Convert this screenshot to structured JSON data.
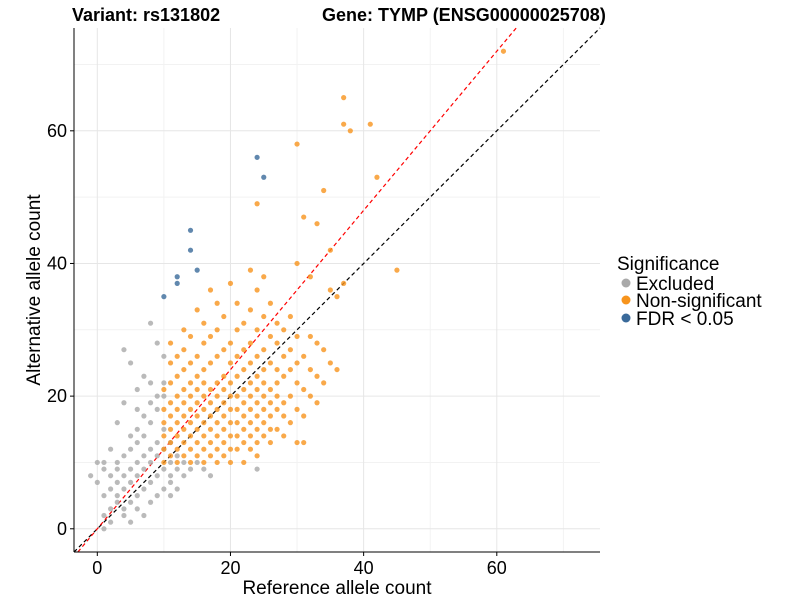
{
  "title_left": "Variant: rs131802",
  "title_right": "Gene: TYMP (ENSG00000025708)",
  "chart_data": {
    "type": "scatter",
    "xlabel": "Reference allele count",
    "ylabel": "Alternative allele count",
    "xlim": [
      -3.5,
      75.5
    ],
    "ylim": [
      -3.5,
      75.5
    ],
    "xticks": [
      0,
      20,
      40,
      60
    ],
    "yticks": [
      0,
      20,
      40,
      60
    ],
    "grid": true,
    "reference_lines": [
      {
        "name": "diagonal y = x",
        "slope": 1,
        "intercept": 0,
        "color": "#000000",
        "dash": "dashed"
      },
      {
        "name": "fitted ratio",
        "slope": 1.2,
        "intercept": 0,
        "color": "#ff0000",
        "dash": "dashed"
      }
    ],
    "legend": {
      "title": "Significance",
      "position": "right",
      "entries": [
        {
          "label": "Excluded",
          "color": "#a9a9a9"
        },
        {
          "label": "Non-significant",
          "color": "#f7941d"
        },
        {
          "label": "FDR < 0.05",
          "color": "#3a6a9a"
        }
      ]
    },
    "series": [
      {
        "name": "Excluded",
        "color": "#a9a9a9",
        "points": [
          [
            -1,
            8
          ],
          [
            1,
            0
          ],
          [
            1,
            2
          ],
          [
            2,
            1
          ],
          [
            2,
            3
          ],
          [
            1,
            5
          ],
          [
            0,
            7
          ],
          [
            1,
            9
          ],
          [
            0,
            10
          ],
          [
            1,
            10
          ],
          [
            2,
            6
          ],
          [
            2,
            8
          ],
          [
            3,
            4
          ],
          [
            3,
            5
          ],
          [
            3,
            7
          ],
          [
            3,
            9
          ],
          [
            3,
            10
          ],
          [
            4,
            2
          ],
          [
            4,
            3
          ],
          [
            4,
            6
          ],
          [
            4,
            8
          ],
          [
            4,
            11
          ],
          [
            5,
            1
          ],
          [
            5,
            4
          ],
          [
            5,
            7
          ],
          [
            5,
            9
          ],
          [
            5,
            12
          ],
          [
            5,
            14
          ],
          [
            6,
            3
          ],
          [
            6,
            5
          ],
          [
            6,
            8
          ],
          [
            6,
            10
          ],
          [
            6,
            13
          ],
          [
            6,
            15
          ],
          [
            7,
            2
          ],
          [
            7,
            6
          ],
          [
            7,
            9
          ],
          [
            7,
            11
          ],
          [
            7,
            14
          ],
          [
            7,
            17
          ],
          [
            8,
            4
          ],
          [
            8,
            7
          ],
          [
            8,
            10
          ],
          [
            8,
            12
          ],
          [
            8,
            16
          ],
          [
            8,
            19
          ],
          [
            9,
            5
          ],
          [
            9,
            8
          ],
          [
            9,
            11
          ],
          [
            9,
            13
          ],
          [
            9,
            18
          ],
          [
            9,
            20
          ],
          [
            10,
            6
          ],
          [
            10,
            9
          ],
          [
            10,
            12
          ],
          [
            10,
            15
          ],
          [
            10,
            20
          ],
          [
            10,
            22
          ],
          [
            11,
            7
          ],
          [
            11,
            10
          ],
          [
            11,
            13
          ],
          [
            11,
            8
          ],
          [
            12,
            9
          ],
          [
            12,
            11
          ],
          [
            13,
            8
          ],
          [
            13,
            10
          ],
          [
            14,
            9
          ],
          [
            15,
            10
          ],
          [
            16,
            9
          ],
          [
            17,
            8
          ],
          [
            4,
            27
          ],
          [
            5,
            25
          ],
          [
            8,
            31
          ],
          [
            4,
            19
          ],
          [
            6,
            21
          ],
          [
            7,
            23
          ],
          [
            3,
            16
          ],
          [
            10,
            26
          ],
          [
            9,
            28
          ],
          [
            2,
            12
          ],
          [
            6,
            18
          ],
          [
            8,
            22
          ],
          [
            24,
            9
          ],
          [
            11,
            5
          ],
          [
            12,
            6
          ]
        ]
      },
      {
        "name": "Non-significant",
        "color": "#f7941d",
        "points": [
          [
            10,
            10
          ],
          [
            10,
            12
          ],
          [
            10,
            14
          ],
          [
            10,
            16
          ],
          [
            10,
            18
          ],
          [
            10,
            21
          ],
          [
            11,
            11
          ],
          [
            11,
            13
          ],
          [
            11,
            15
          ],
          [
            11,
            17
          ],
          [
            11,
            19
          ],
          [
            11,
            22
          ],
          [
            11,
            25
          ],
          [
            11,
            28
          ],
          [
            12,
            10
          ],
          [
            12,
            12
          ],
          [
            12,
            14
          ],
          [
            12,
            16
          ],
          [
            12,
            18
          ],
          [
            12,
            20
          ],
          [
            12,
            23
          ],
          [
            12,
            26
          ],
          [
            13,
            11
          ],
          [
            13,
            13
          ],
          [
            13,
            15
          ],
          [
            13,
            17
          ],
          [
            13,
            19
          ],
          [
            13,
            21
          ],
          [
            13,
            24
          ],
          [
            13,
            27
          ],
          [
            13,
            30
          ],
          [
            14,
            10
          ],
          [
            14,
            12
          ],
          [
            14,
            14
          ],
          [
            14,
            16
          ],
          [
            14,
            18
          ],
          [
            14,
            20
          ],
          [
            14,
            22
          ],
          [
            14,
            25
          ],
          [
            14,
            29
          ],
          [
            15,
            11
          ],
          [
            15,
            13
          ],
          [
            15,
            15
          ],
          [
            15,
            17
          ],
          [
            15,
            19
          ],
          [
            15,
            21
          ],
          [
            15,
            23
          ],
          [
            15,
            26
          ],
          [
            15,
            33
          ],
          [
            16,
            10
          ],
          [
            16,
            12
          ],
          [
            16,
            14
          ],
          [
            16,
            16
          ],
          [
            16,
            18
          ],
          [
            16,
            20
          ],
          [
            16,
            22
          ],
          [
            16,
            24
          ],
          [
            16,
            28
          ],
          [
            16,
            31
          ],
          [
            17,
            11
          ],
          [
            17,
            13
          ],
          [
            17,
            15
          ],
          [
            17,
            17
          ],
          [
            17,
            19
          ],
          [
            17,
            21
          ],
          [
            17,
            25
          ],
          [
            17,
            29
          ],
          [
            17,
            36
          ],
          [
            18,
            10
          ],
          [
            18,
            12
          ],
          [
            18,
            14
          ],
          [
            18,
            16
          ],
          [
            18,
            18
          ],
          [
            18,
            20
          ],
          [
            18,
            22
          ],
          [
            18,
            26
          ],
          [
            18,
            30
          ],
          [
            18,
            34
          ],
          [
            19,
            11
          ],
          [
            19,
            13
          ],
          [
            19,
            15
          ],
          [
            19,
            17
          ],
          [
            19,
            19
          ],
          [
            19,
            21
          ],
          [
            19,
            23
          ],
          [
            19,
            27
          ],
          [
            19,
            32
          ],
          [
            20,
            10
          ],
          [
            20,
            12
          ],
          [
            20,
            14
          ],
          [
            20,
            16
          ],
          [
            20,
            18
          ],
          [
            20,
            20
          ],
          [
            20,
            22
          ],
          [
            20,
            25
          ],
          [
            20,
            28
          ],
          [
            20,
            37
          ],
          [
            21,
            12
          ],
          [
            21,
            14
          ],
          [
            21,
            16
          ],
          [
            21,
            18
          ],
          [
            21,
            20
          ],
          [
            21,
            23
          ],
          [
            21,
            26
          ],
          [
            21,
            30
          ],
          [
            21,
            34
          ],
          [
            22,
            10
          ],
          [
            22,
            13
          ],
          [
            22,
            15
          ],
          [
            22,
            17
          ],
          [
            22,
            19
          ],
          [
            22,
            21
          ],
          [
            22,
            24
          ],
          [
            22,
            27
          ],
          [
            22,
            31
          ],
          [
            23,
            12
          ],
          [
            23,
            14
          ],
          [
            23,
            16
          ],
          [
            23,
            18
          ],
          [
            23,
            20
          ],
          [
            23,
            22
          ],
          [
            23,
            25
          ],
          [
            23,
            28
          ],
          [
            23,
            33
          ],
          [
            23,
            39
          ],
          [
            24,
            11
          ],
          [
            24,
            13
          ],
          [
            24,
            15
          ],
          [
            24,
            17
          ],
          [
            24,
            19
          ],
          [
            24,
            21
          ],
          [
            24,
            23
          ],
          [
            24,
            26
          ],
          [
            24,
            30
          ],
          [
            24,
            36
          ],
          [
            24,
            49
          ],
          [
            25,
            14
          ],
          [
            25,
            16
          ],
          [
            25,
            18
          ],
          [
            25,
            20
          ],
          [
            25,
            22
          ],
          [
            25,
            24
          ],
          [
            25,
            27
          ],
          [
            25,
            32
          ],
          [
            25,
            38
          ],
          [
            26,
            13
          ],
          [
            26,
            15
          ],
          [
            26,
            17
          ],
          [
            26,
            19
          ],
          [
            26,
            21
          ],
          [
            26,
            25
          ],
          [
            26,
            29
          ],
          [
            26,
            34
          ],
          [
            27,
            15
          ],
          [
            27,
            18
          ],
          [
            27,
            20
          ],
          [
            27,
            22
          ],
          [
            27,
            24
          ],
          [
            27,
            28
          ],
          [
            27,
            31
          ],
          [
            28,
            14
          ],
          [
            28,
            17
          ],
          [
            28,
            19
          ],
          [
            28,
            23
          ],
          [
            28,
            26
          ],
          [
            28,
            30
          ],
          [
            29,
            16
          ],
          [
            29,
            20
          ],
          [
            29,
            24
          ],
          [
            29,
            27
          ],
          [
            29,
            32
          ],
          [
            30,
            13
          ],
          [
            30,
            18
          ],
          [
            30,
            22
          ],
          [
            30,
            25
          ],
          [
            30,
            29
          ],
          [
            30,
            40
          ],
          [
            30,
            58
          ],
          [
            31,
            13
          ],
          [
            31,
            17
          ],
          [
            31,
            21
          ],
          [
            31,
            26
          ],
          [
            31,
            47
          ],
          [
            32,
            20
          ],
          [
            32,
            24
          ],
          [
            32,
            29
          ],
          [
            32,
            38
          ],
          [
            33,
            19
          ],
          [
            33,
            23
          ],
          [
            33,
            28
          ],
          [
            33,
            46
          ],
          [
            34,
            22
          ],
          [
            34,
            27
          ],
          [
            34,
            51
          ],
          [
            35,
            25
          ],
          [
            35,
            36
          ],
          [
            35,
            42
          ],
          [
            36,
            24
          ],
          [
            36,
            35
          ],
          [
            37,
            37
          ],
          [
            37,
            61
          ],
          [
            37,
            65
          ],
          [
            38,
            60
          ],
          [
            41,
            61
          ],
          [
            42,
            53
          ],
          [
            45,
            39
          ],
          [
            61,
            72
          ]
        ]
      },
      {
        "name": "FDR < 0.05",
        "color": "#3a6a9a",
        "points": [
          [
            10,
            35
          ],
          [
            12,
            37
          ],
          [
            12,
            38
          ],
          [
            14,
            42
          ],
          [
            14,
            45
          ],
          [
            15,
            39
          ],
          [
            24,
            56
          ],
          [
            25,
            53
          ]
        ]
      }
    ]
  }
}
